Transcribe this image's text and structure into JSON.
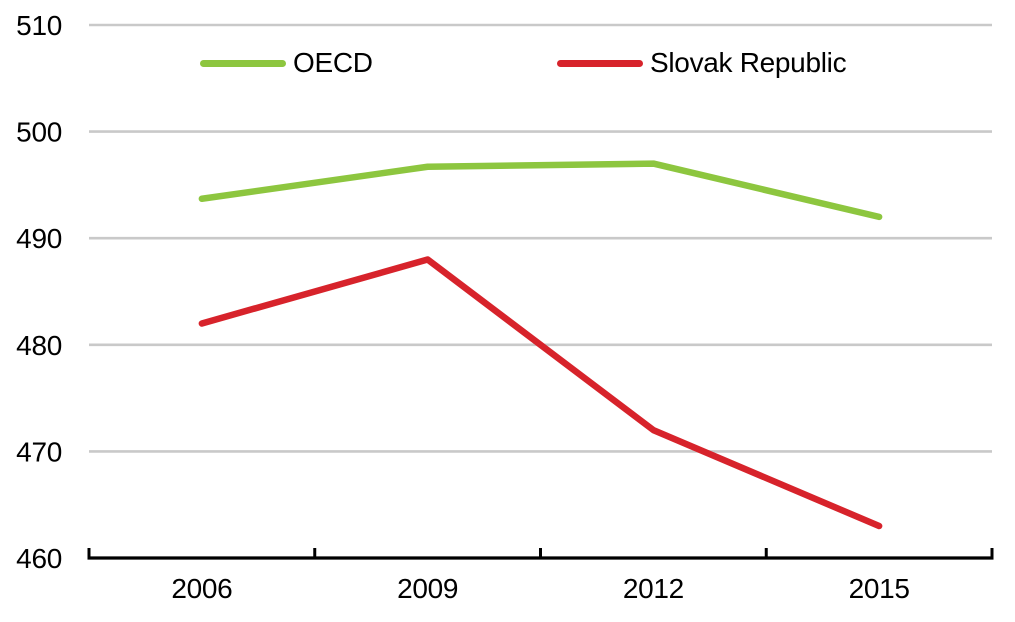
{
  "chart_data": {
    "type": "line",
    "categories": [
      "2006",
      "2009",
      "2012",
      "2015"
    ],
    "series": [
      {
        "name": "OECD",
        "color": "#8dc63f",
        "values": [
          493.7,
          496.7,
          497,
          492
        ]
      },
      {
        "name": "Slovak Republic",
        "color": "#d7232b",
        "values": [
          482,
          488,
          472,
          463
        ]
      }
    ],
    "title": "",
    "xlabel": "",
    "ylabel": "",
    "ylim": [
      460,
      510
    ],
    "ytick_step": 10,
    "y_tick_labels": [
      "460",
      "470",
      "480",
      "490",
      "500",
      "510"
    ],
    "grid": "horizontal",
    "legend_position": "top-inside"
  },
  "colors": {
    "gridline": "#c9c9c9",
    "axis": "#000000",
    "tick_text": "#000000",
    "background": "#ffffff"
  }
}
